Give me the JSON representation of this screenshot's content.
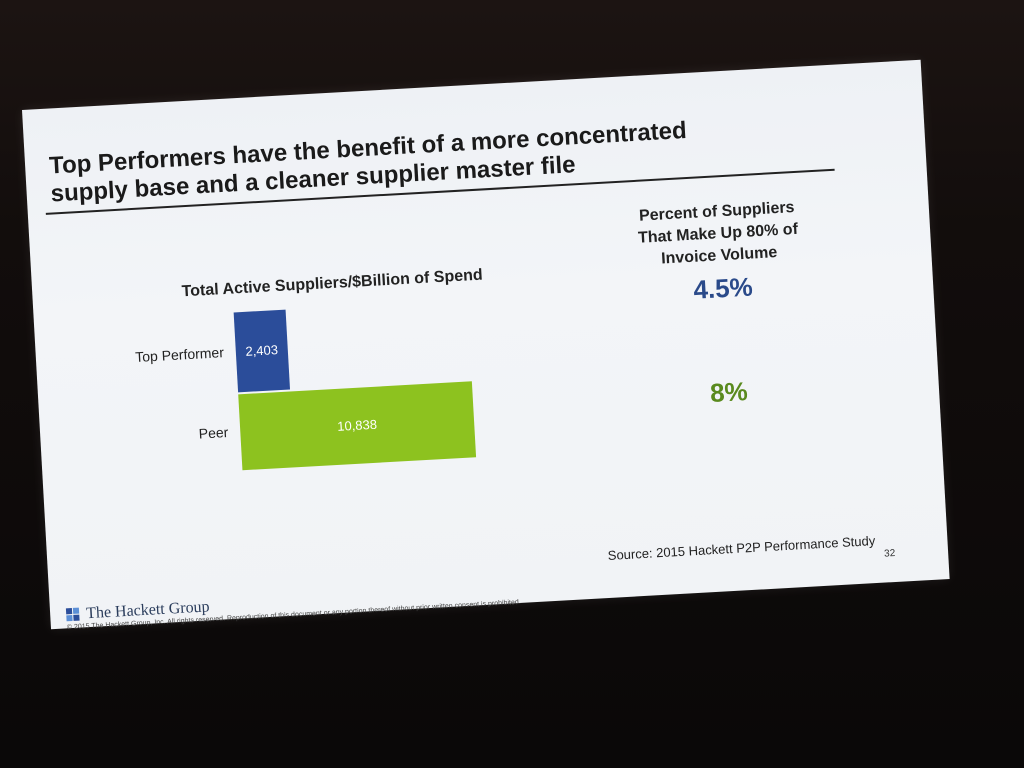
{
  "slide": {
    "title_line1": "Top Performers have the benefit of a more concentrated",
    "title_line2": "supply base and a cleaner supplier master file",
    "source": "Source:  2015 Hackett P2P Performance Study",
    "page_number": "32",
    "logo_text": "The Hackett Group",
    "copyright": "© 2015 The Hackett Group, Inc.  All rights reserved.  Reproduction of this document or any portion thereof without prior written consent is prohibited."
  },
  "right_panel": {
    "heading_line1": "Percent of Suppliers",
    "heading_line2": "That Make Up 80% of",
    "heading_line3": "Invoice Volume",
    "values": [
      {
        "label": "4.5%",
        "color": "#2a4a8a"
      },
      {
        "label": "8%",
        "color": "#5a8a1e"
      }
    ]
  },
  "chart_data": {
    "type": "bar",
    "orientation": "horizontal",
    "title": "Total Active Suppliers/$Billion of Spend",
    "categories": [
      "Top Performer",
      "Peer"
    ],
    "values": [
      2403,
      10838
    ],
    "value_labels": [
      "2,403",
      "10,838"
    ],
    "colors": [
      "#2b4d9a",
      "#8dc21f"
    ],
    "xlabel": "",
    "ylabel": "",
    "grid": false
  }
}
